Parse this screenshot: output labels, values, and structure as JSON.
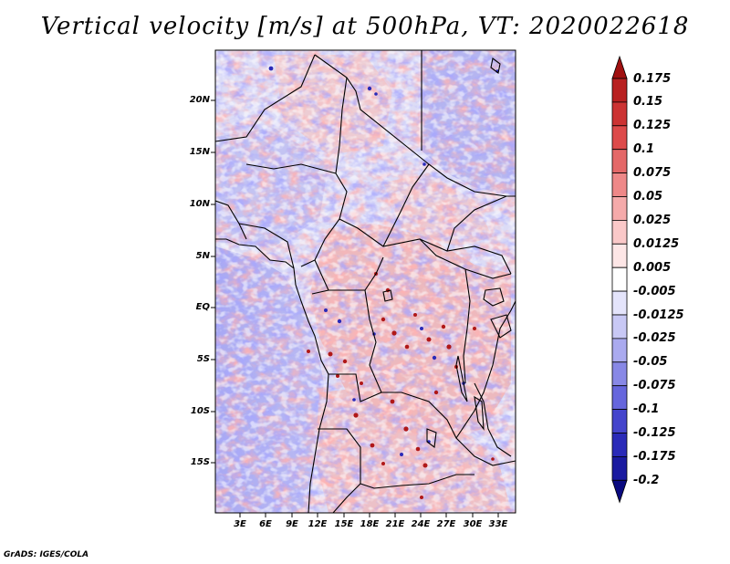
{
  "title": "Vertical velocity [m/s] at 500hPa, VT: 2020022618",
  "lat_labels": [
    "20N",
    "15N",
    "10N",
    "5N",
    "EQ",
    "5S",
    "10S",
    "15S"
  ],
  "lon_labels": [
    "3E",
    "6E",
    "9E",
    "12E",
    "15E",
    "18E",
    "21E",
    "24E",
    "27E",
    "30E",
    "33E"
  ],
  "colorbar": {
    "levels": [
      "0.175",
      "0.15",
      "0.125",
      "0.1",
      "0.075",
      "0.05",
      "0.025",
      "0.0125",
      "0.005",
      "-0.005",
      "-0.0125",
      "-0.025",
      "-0.05",
      "-0.075",
      "-0.1",
      "-0.125",
      "-0.175",
      "-0.2"
    ],
    "colors": [
      "#a01010",
      "#b82020",
      "#cc3333",
      "#dd4a4a",
      "#e46868",
      "#ee8888",
      "#f5aaaa",
      "#fac8c8",
      "#fde6e6",
      "#ffffff",
      "#e4e4fb",
      "#c8c8f5",
      "#aaaaef",
      "#8888e6",
      "#6666dd",
      "#4444cc",
      "#2a2ab8",
      "#1a1aa0",
      "#0a0a80"
    ]
  },
  "footer": "GrADS: IGES/COLA"
}
